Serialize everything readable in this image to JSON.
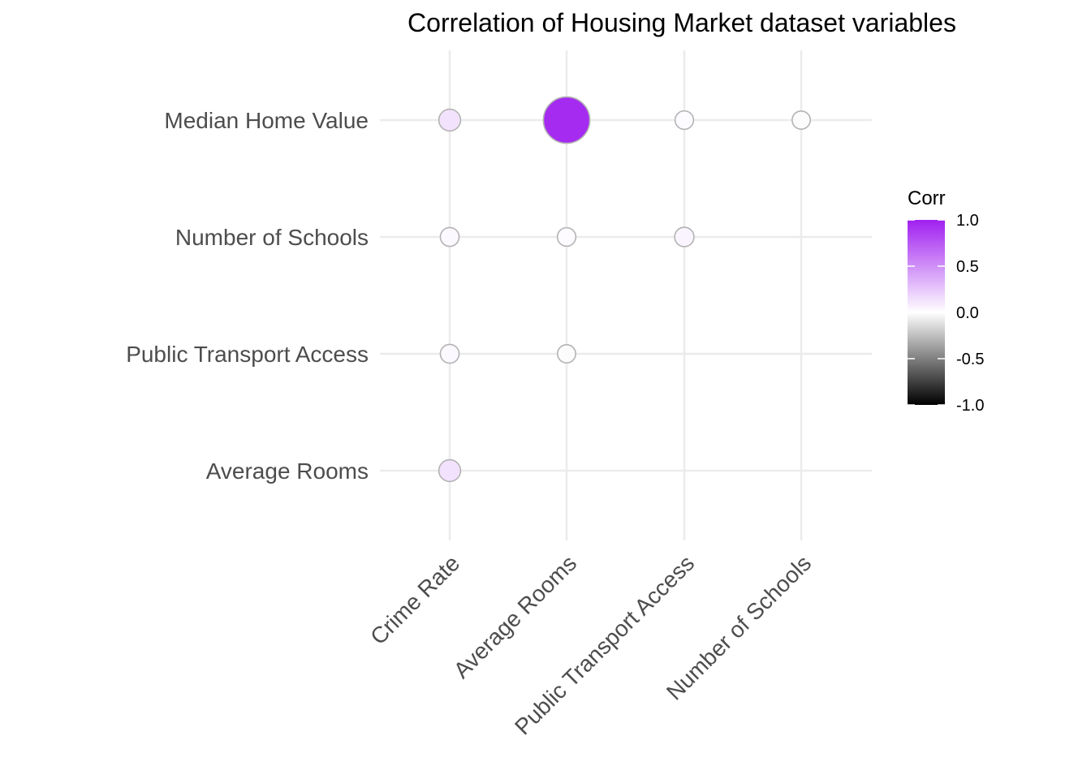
{
  "chart_data": {
    "type": "scatter",
    "subtype": "correlation-bubble",
    "title": "Correlation of Housing Market dataset variables",
    "x_categories": [
      "Crime Rate",
      "Average Rooms",
      "Public Transport Access",
      "Number of Schools"
    ],
    "y_categories": [
      "Average Rooms",
      "Public Transport Access",
      "Number of Schools",
      "Median Home Value"
    ],
    "points": [
      {
        "x": "Crime Rate",
        "y": "Median Home Value",
        "corr": 0.13
      },
      {
        "x": "Average Rooms",
        "y": "Median Home Value",
        "corr": 0.95
      },
      {
        "x": "Public Transport Access",
        "y": "Median Home Value",
        "corr": 0.02
      },
      {
        "x": "Number of Schools",
        "y": "Median Home Value",
        "corr": -0.01
      },
      {
        "x": "Crime Rate",
        "y": "Number of Schools",
        "corr": 0.03
      },
      {
        "x": "Average Rooms",
        "y": "Number of Schools",
        "corr": 0.02
      },
      {
        "x": "Public Transport Access",
        "y": "Number of Schools",
        "corr": 0.05
      },
      {
        "x": "Crime Rate",
        "y": "Public Transport Access",
        "corr": 0.03
      },
      {
        "x": "Average Rooms",
        "y": "Public Transport Access",
        "corr": -0.01
      },
      {
        "x": "Crime Rate",
        "y": "Average Rooms",
        "corr": 0.13
      }
    ],
    "legend": {
      "title": "Corr",
      "placement": "right",
      "ticks": [
        {
          "value": 1.0,
          "label": "1.0"
        },
        {
          "value": 0.5,
          "label": "0.5"
        },
        {
          "value": 0.0,
          "label": "0.0"
        },
        {
          "value": -0.5,
          "label": "-0.5"
        },
        {
          "value": -1.0,
          "label": "-1.0"
        }
      ]
    },
    "color_scale": {
      "low": "#000000",
      "mid": "#ffffff",
      "high": "#a020f0",
      "limits": [
        -1,
        1
      ]
    },
    "grid": true
  }
}
